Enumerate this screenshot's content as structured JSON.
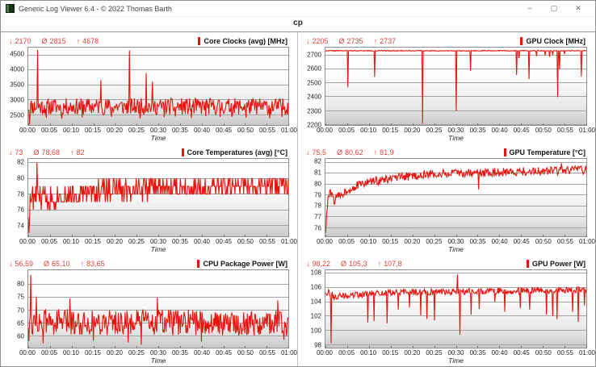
{
  "window": {
    "title": "Generic Log Viewer 6.4 - © 2022 Thomas Barth",
    "controls": {
      "minimize": "−",
      "maximize": "▢",
      "close": "✕"
    }
  },
  "tab": {
    "label": "cp"
  },
  "stats_glyphs": {
    "min": "↓",
    "avg": "Ø",
    "max": "↑"
  },
  "colors": {
    "accent_red": "#e8130c",
    "stats_red": "#e0423b",
    "grid": "#a3a3a3"
  },
  "axis": {
    "x_ticks": [
      "00:00",
      "00:05",
      "00:10",
      "00:15",
      "00:20",
      "00:25",
      "00:30",
      "00:35",
      "00:40",
      "00:45",
      "00:50",
      "00:55",
      "01:00"
    ],
    "xlabel": "Time",
    "x_range_minutes": [
      0,
      60
    ]
  },
  "chart_data": [
    {
      "id": "core-clocks",
      "type": "line",
      "title": "Core Clocks (avg) [MHz]",
      "stats": {
        "min": "2170",
        "avg": "2815",
        "max": "4678"
      },
      "ylim": [
        2150,
        4750
      ],
      "y_ticks": [
        2500,
        3000,
        3500,
        4000,
        4500
      ],
      "series_color": "#e8130c",
      "synth": {
        "seed": 11,
        "points": 420,
        "noise": 280,
        "quantize": 0,
        "baseline": [
          [
            0,
            2770
          ],
          [
            60,
            2770
          ]
        ],
        "spikes": [
          [
            0.3,
            2170
          ],
          [
            2.1,
            4678
          ],
          [
            4.2,
            2395
          ],
          [
            7.8,
            2360
          ],
          [
            12.5,
            2405
          ],
          [
            16.8,
            3660
          ],
          [
            19.2,
            2430
          ],
          [
            23.4,
            4660
          ],
          [
            25.8,
            2370
          ],
          [
            27.2,
            3890
          ],
          [
            28.6,
            3610
          ],
          [
            31.4,
            2410
          ],
          [
            34.0,
            2440
          ],
          [
            37.6,
            2385
          ],
          [
            41.0,
            2450
          ],
          [
            44.2,
            2420
          ],
          [
            47.0,
            2430
          ],
          [
            50.3,
            2395
          ],
          [
            55.7,
            2375
          ],
          [
            58.6,
            2425
          ]
        ]
      }
    },
    {
      "id": "gpu-clock",
      "type": "line",
      "title": "GPU Clock [MHz]",
      "stats": {
        "min": "2205",
        "avg": "2735",
        "max": "2737"
      },
      "ylim": [
        2195,
        2757
      ],
      "y_ticks": [
        2200,
        2300,
        2400,
        2500,
        2600,
        2700
      ],
      "series_color": "#e8130c",
      "synth": {
        "seed": 22,
        "points": 420,
        "noise": 3,
        "quantize": 0,
        "clamp_high": 2737,
        "baseline": [
          [
            0,
            2734
          ],
          [
            60,
            2734
          ]
        ],
        "spikes": [
          [
            5.2,
            2468
          ],
          [
            11.3,
            2545
          ],
          [
            22.3,
            2205
          ],
          [
            30.1,
            2297
          ],
          [
            33.4,
            2588
          ],
          [
            43.9,
            2558
          ],
          [
            44.5,
            2680
          ],
          [
            46.8,
            2528
          ],
          [
            48.5,
            2695
          ],
          [
            50.5,
            2700
          ],
          [
            51.5,
            2690
          ],
          [
            52.2,
            2705
          ],
          [
            53.4,
            2398
          ],
          [
            53.8,
            2600
          ],
          [
            55.0,
            2710
          ],
          [
            58.8,
            2548
          ]
        ]
      }
    },
    {
      "id": "core-temps",
      "type": "line",
      "title": "Core Temperatures (avg) [°C]",
      "stats": {
        "min": "73",
        "avg": "78,68",
        "max": "82"
      },
      "ylim": [
        72.6,
        82.5
      ],
      "y_ticks": [
        74,
        76,
        78,
        80,
        82
      ],
      "series_color": "#e8130c",
      "synth": {
        "seed": 33,
        "points": 420,
        "noise": 1.4,
        "quantize": 1,
        "baseline": [
          [
            0,
            76.2
          ],
          [
            0.8,
            77.8
          ],
          [
            4,
            77.4
          ],
          [
            8,
            77.8
          ],
          [
            12,
            78.3
          ],
          [
            18,
            78.5
          ],
          [
            28,
            78.8
          ],
          [
            40,
            78.9
          ],
          [
            60,
            79.0
          ]
        ],
        "spikes": [
          [
            0.1,
            73
          ],
          [
            0.25,
            74.5
          ],
          [
            1.2,
            76
          ],
          [
            2.0,
            82
          ]
        ]
      }
    },
    {
      "id": "gpu-temp",
      "type": "line",
      "title": "GPU Temperature [°C]",
      "stats": {
        "min": "75,5",
        "avg": "80,62",
        "max": "81,9"
      },
      "ylim": [
        75.2,
        82.3
      ],
      "y_ticks": [
        76,
        77,
        78,
        79,
        80,
        81,
        82
      ],
      "series_color": "#e8130c",
      "synth": {
        "seed": 44,
        "points": 420,
        "noise": 0.4,
        "quantize": 0,
        "baseline": [
          [
            0,
            75.5
          ],
          [
            0.6,
            78.8
          ],
          [
            1.2,
            79.2
          ],
          [
            2,
            78.5
          ],
          [
            3,
            78.9
          ],
          [
            5,
            79.4
          ],
          [
            7,
            79.8
          ],
          [
            10,
            80.2
          ],
          [
            14,
            80.4
          ],
          [
            19,
            80.7
          ],
          [
            25,
            80.9
          ],
          [
            32,
            81.0
          ],
          [
            42,
            81.1
          ],
          [
            52,
            81.2
          ],
          [
            60,
            81.3
          ]
        ],
        "spikes": [
          [
            0.05,
            75.5
          ],
          [
            35.2,
            79.5
          ],
          [
            54.3,
            81.9
          ]
        ]
      }
    },
    {
      "id": "cpu-package-power",
      "type": "line",
      "title": "CPU Package Power [W]",
      "stats": {
        "min": "56,59",
        "avg": "65,10",
        "max": "83,65"
      },
      "ylim": [
        55.5,
        85.5
      ],
      "y_ticks": [
        60,
        65,
        70,
        75,
        80
      ],
      "series_color": "#e8130c",
      "synth": {
        "seed": 55,
        "points": 420,
        "noise": 5.0,
        "quantize": 0,
        "baseline": [
          [
            0,
            65.5
          ],
          [
            60,
            65.0
          ]
        ],
        "spikes": [
          [
            0.2,
            58.0
          ],
          [
            0.6,
            83.65
          ],
          [
            1.8,
            75.3
          ],
          [
            3.5,
            57.2
          ],
          [
            9.6,
            74.6
          ],
          [
            15.0,
            58.2
          ],
          [
            23.0,
            57.5
          ],
          [
            26.0,
            56.6
          ],
          [
            29.8,
            74.9
          ],
          [
            40.0,
            57.9
          ],
          [
            57.5,
            73.8
          ],
          [
            59.0,
            58.5
          ]
        ]
      }
    },
    {
      "id": "gpu-power",
      "type": "line",
      "title": "GPU Power [W]",
      "stats": {
        "min": "98,22",
        "avg": "105,3",
        "max": "107,8"
      },
      "ylim": [
        97.6,
        108.4
      ],
      "y_ticks": [
        98,
        100,
        102,
        104,
        106,
        108
      ],
      "series_color": "#e8130c",
      "synth": {
        "seed": 66,
        "points": 420,
        "noise": 0.45,
        "quantize": 0,
        "baseline": [
          [
            0,
            105.4
          ],
          [
            1.0,
            105.2
          ],
          [
            2.0,
            104.7
          ],
          [
            4,
            104.8
          ],
          [
            8,
            105.0
          ],
          [
            15,
            105.3
          ],
          [
            25,
            105.4
          ],
          [
            40,
            105.5
          ],
          [
            60,
            105.6
          ]
        ],
        "spikes": [
          [
            1.3,
            98.22
          ],
          [
            9.8,
            101.1
          ],
          [
            11.2,
            101.3
          ],
          [
            14.2,
            101.0
          ],
          [
            16.8,
            102.9
          ],
          [
            19.3,
            103.2
          ],
          [
            21.9,
            102.1
          ],
          [
            23.3,
            101.6
          ],
          [
            25.1,
            101.4
          ],
          [
            30.3,
            107.8
          ],
          [
            30.9,
            99.4
          ],
          [
            33.5,
            102.2
          ],
          [
            35.4,
            103.0
          ],
          [
            38.9,
            104.0
          ],
          [
            41.2,
            102.6
          ],
          [
            44.8,
            103.1
          ],
          [
            46.9,
            102.9
          ],
          [
            50.8,
            102.2
          ],
          [
            52.3,
            102.0
          ],
          [
            53.2,
            101.6
          ],
          [
            56.9,
            102.6
          ],
          [
            58.2,
            101.2
          ],
          [
            59.5,
            103.5
          ]
        ]
      }
    }
  ]
}
